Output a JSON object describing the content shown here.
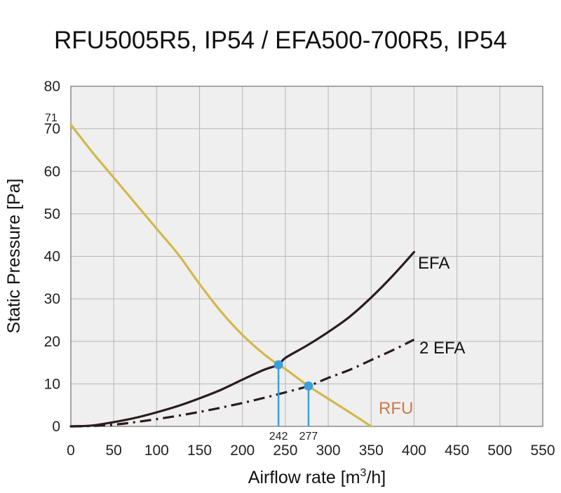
{
  "chart_data": {
    "type": "line",
    "title": "RFU5005R5, IP54 / EFA500-700R5, IP54",
    "xlabel": "Airflow rate [m",
    "xlabel_sup": "3",
    "xlabel_tail": "/h]",
    "ylabel": "Static Pressure [Pa]",
    "xlim": [
      0,
      550
    ],
    "ylim": [
      0,
      80
    ],
    "xticks": [
      0,
      50,
      100,
      150,
      200,
      250,
      300,
      350,
      400,
      450,
      500,
      550
    ],
    "yticks": [
      0,
      10,
      20,
      30,
      40,
      50,
      60,
      70,
      80
    ],
    "grid": true,
    "annotations": {
      "y_max_label": "71",
      "intersection_labels": [
        "242",
        "277"
      ]
    },
    "series": [
      {
        "name": "RFU",
        "style": "solid",
        "color": "#d2b84a",
        "label_color": "#c87a4a",
        "x": [
          0,
          25,
          50,
          75,
          100,
          125,
          150,
          175,
          200,
          225,
          242,
          250,
          277,
          300,
          325,
          350
        ],
        "y": [
          71,
          64.5,
          58.5,
          52.5,
          46.5,
          40.5,
          33.5,
          27,
          21.5,
          17,
          14.5,
          13.5,
          9.5,
          6.5,
          3.3,
          0
        ]
      },
      {
        "name": "EFA",
        "style": "solid",
        "color": "#2a1c1e",
        "label_color": "#111111",
        "x": [
          0,
          25,
          50,
          75,
          100,
          125,
          150,
          175,
          200,
          225,
          242,
          250,
          275,
          300,
          325,
          350,
          375,
          400
        ],
        "y": [
          0,
          0.2,
          1.0,
          2.0,
          3.3,
          4.8,
          6.6,
          8.6,
          11.0,
          13.3,
          14.5,
          16.1,
          19.0,
          22.2,
          25.8,
          30.3,
          35.4,
          41.0
        ]
      },
      {
        "name": "2 EFA",
        "style": "dashdot",
        "color": "#2a1c1e",
        "label_color": "#111111",
        "x": [
          0,
          25,
          50,
          75,
          100,
          125,
          150,
          175,
          200,
          225,
          250,
          277,
          300,
          325,
          350,
          375,
          400
        ],
        "y": [
          0,
          0.1,
          0.4,
          1.0,
          1.7,
          2.5,
          3.4,
          4.4,
          5.5,
          6.7,
          8.0,
          9.5,
          11.4,
          13.3,
          15.6,
          17.9,
          20.4
        ]
      }
    ],
    "intersections": [
      {
        "x": 242,
        "y": 14.5,
        "label": "242"
      },
      {
        "x": 277,
        "y": 9.5,
        "label": "277"
      }
    ],
    "marker_color": "#3aa0dc"
  }
}
